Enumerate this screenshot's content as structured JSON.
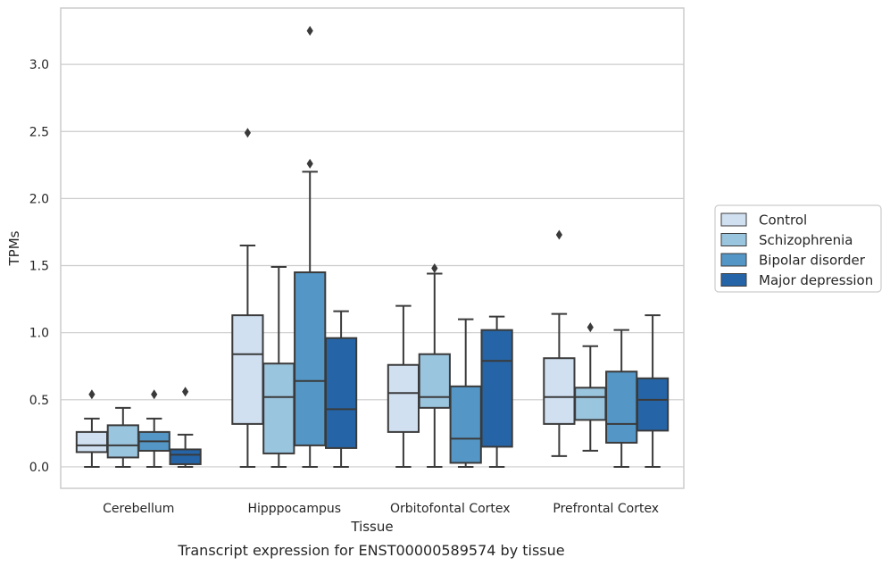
{
  "chart_data": {
    "type": "box",
    "title": "",
    "caption": "Transcript expression for ENST00000589574 by tissue",
    "xlabel": "Tissue",
    "ylabel": "TPMs",
    "ylim": [
      -0.16,
      3.42
    ],
    "yticks": [
      "0.0",
      "0.5",
      "1.0",
      "1.5",
      "2.0",
      "2.5",
      "3.0"
    ],
    "ytick_values": [
      0,
      0.5,
      1.0,
      1.5,
      2.0,
      2.5,
      3.0
    ],
    "grid": "horizontal",
    "legend_position": "right",
    "categories": [
      "Cerebellum",
      "Hipppocampus",
      "Orbitofontal Cortex",
      "Prefrontal Cortex"
    ],
    "series": [
      {
        "name": "Control",
        "color": "#d0e0f1",
        "boxes": [
          {
            "whisker_low": 0.0,
            "q1": 0.11,
            "median": 0.16,
            "q3": 0.26,
            "whisker_high": 0.36,
            "outliers": [
              0.54
            ]
          },
          {
            "whisker_low": 0.0,
            "q1": 0.32,
            "median": 0.84,
            "q3": 1.13,
            "whisker_high": 1.65,
            "outliers": [
              2.49
            ]
          },
          {
            "whisker_low": 0.0,
            "q1": 0.26,
            "median": 0.55,
            "q3": 0.76,
            "whisker_high": 1.2,
            "outliers": []
          },
          {
            "whisker_low": 0.08,
            "q1": 0.32,
            "median": 0.52,
            "q3": 0.81,
            "whisker_high": 1.14,
            "outliers": [
              1.73
            ]
          }
        ]
      },
      {
        "name": "Schizophrenia",
        "color": "#9ac5de",
        "boxes": [
          {
            "whisker_low": 0.0,
            "q1": 0.07,
            "median": 0.16,
            "q3": 0.31,
            "whisker_high": 0.44,
            "outliers": []
          },
          {
            "whisker_low": 0.0,
            "q1": 0.1,
            "median": 0.52,
            "q3": 0.77,
            "whisker_high": 1.49,
            "outliers": []
          },
          {
            "whisker_low": 0.0,
            "q1": 0.44,
            "median": 0.52,
            "q3": 0.84,
            "whisker_high": 1.44,
            "outliers": [
              1.48
            ]
          },
          {
            "whisker_low": 0.12,
            "q1": 0.35,
            "median": 0.52,
            "q3": 0.59,
            "whisker_high": 0.9,
            "outliers": [
              1.04
            ]
          }
        ]
      },
      {
        "name": "Bipolar disorder",
        "color": "#5497c7",
        "boxes": [
          {
            "whisker_low": 0.0,
            "q1": 0.12,
            "median": 0.19,
            "q3": 0.26,
            "whisker_high": 0.36,
            "outliers": [
              0.54
            ]
          },
          {
            "whisker_low": 0.0,
            "q1": 0.16,
            "median": 0.64,
            "q3": 1.45,
            "whisker_high": 2.2,
            "outliers": [
              2.26,
              3.25
            ]
          },
          {
            "whisker_low": 0.0,
            "q1": 0.03,
            "median": 0.21,
            "q3": 0.6,
            "whisker_high": 1.1,
            "outliers": []
          },
          {
            "whisker_low": 0.0,
            "q1": 0.18,
            "median": 0.32,
            "q3": 0.71,
            "whisker_high": 1.02,
            "outliers": []
          }
        ]
      },
      {
        "name": "Major depression",
        "color": "#2565a7",
        "boxes": [
          {
            "whisker_low": 0.0,
            "q1": 0.02,
            "median": 0.09,
            "q3": 0.13,
            "whisker_high": 0.24,
            "outliers": [
              0.56
            ]
          },
          {
            "whisker_low": 0.0,
            "q1": 0.14,
            "median": 0.43,
            "q3": 0.96,
            "whisker_high": 1.16,
            "outliers": []
          },
          {
            "whisker_low": 0.0,
            "q1": 0.15,
            "median": 0.79,
            "q3": 1.02,
            "whisker_high": 1.12,
            "outliers": []
          },
          {
            "whisker_low": 0.0,
            "q1": 0.27,
            "median": 0.5,
            "q3": 0.66,
            "whisker_high": 1.13,
            "outliers": []
          }
        ]
      }
    ]
  }
}
